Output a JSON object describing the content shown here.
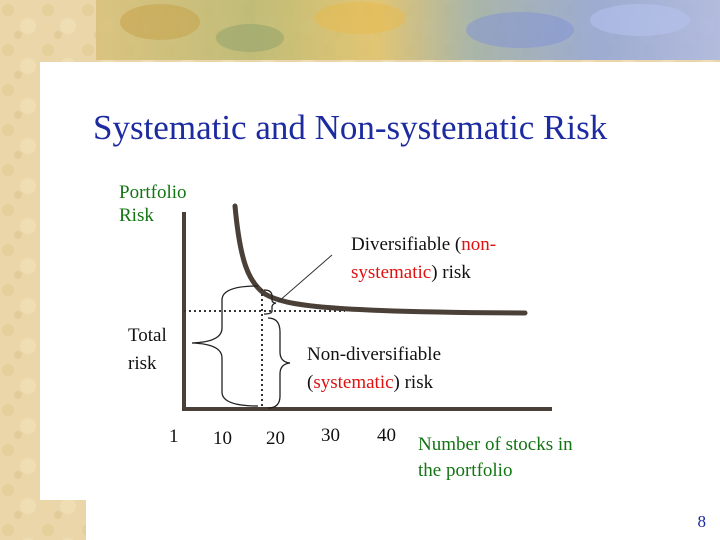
{
  "slide": {
    "title": "Systematic and Non-systematic Risk",
    "page_number": "8"
  },
  "axes": {
    "y_label_line1": "Portfolio",
    "y_label_line2": "Risk",
    "x_label_line1": "Number of stocks in",
    "x_label_line2": "the portfolio",
    "x_ticks": [
      "1",
      "10",
      "20",
      "30",
      "40"
    ]
  },
  "labels": {
    "diversifiable_prefix": "Diversifiable (",
    "diversifiable_red_1": "non-",
    "diversifiable_red_2": "systematic",
    "diversifiable_suffix": ") risk",
    "total_line1": "Total",
    "total_line2": "risk",
    "nondiv_line1": "Non-diversifiable",
    "nondiv_open": "(",
    "nondiv_red": "systematic",
    "nondiv_suffix": ") risk"
  },
  "colors": {
    "title": "#1c2ba0",
    "axis_labels": "#127512",
    "highlight": "#e01010",
    "curve": "#4a4038",
    "background_left": "#e8d3a3"
  }
}
